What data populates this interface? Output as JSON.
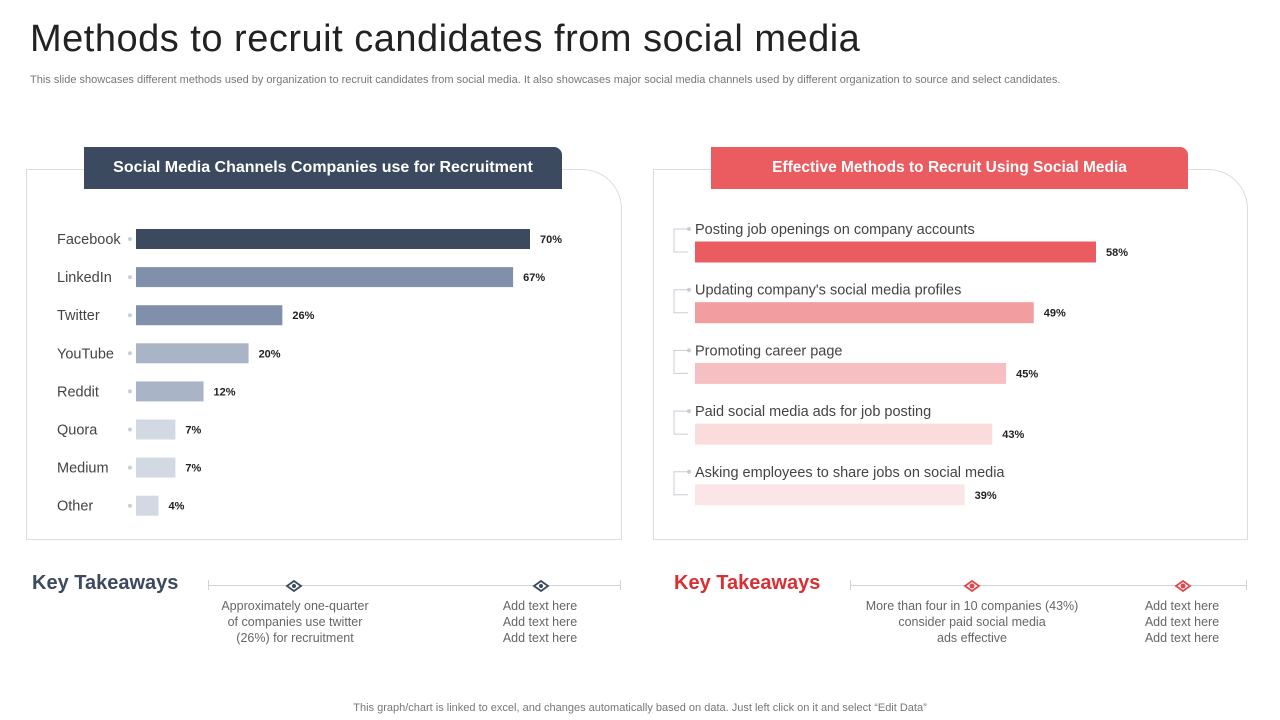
{
  "header": {
    "title": "Methods to recruit candidates from social media",
    "subtitle": "This slide showcases different methods used by organization to recruit candidates from social media. It also showcases major social media channels used by different organization to source and select candidates."
  },
  "left_panel": {
    "banner": "Social Media Channels Companies use for Recruitment"
  },
  "right_panel": {
    "banner": "Effective Methods to Recruit Using Social Media"
  },
  "chart_data": [
    {
      "type": "bar",
      "orientation": "horizontal",
      "title": "Social Media Channels Companies use for Recruitment",
      "categories": [
        "Facebook",
        "LinkedIn",
        "Twitter",
        "YouTube",
        "Reddit",
        "Quora",
        "Medium",
        "Other"
      ],
      "values": [
        70,
        67,
        26,
        20,
        12,
        7,
        7,
        4
      ],
      "value_labels": [
        "70%",
        "67%",
        "26%",
        "20%",
        "12%",
        "7%",
        "7%",
        "4%"
      ],
      "colors": [
        "#3c4a5f",
        "#8190aa",
        "#8190aa",
        "#a9b4c6",
        "#a9b4c6",
        "#d3d9e3",
        "#d3d9e3",
        "#d3d9e3"
      ],
      "xlim": [
        0,
        100
      ],
      "unit": "%"
    },
    {
      "type": "bar",
      "orientation": "horizontal",
      "title": "Effective Methods to Recruit Using Social Media",
      "categories": [
        "Posting job openings on company accounts",
        "Updating company's social media profiles",
        "Promoting career page",
        "Paid social media ads for job posting",
        "Asking employees to share jobs on social media"
      ],
      "values": [
        58,
        49,
        45,
        43,
        39
      ],
      "value_labels": [
        "58%",
        "49%",
        "45%",
        "43%",
        "39%"
      ],
      "colors": [
        "#ea5c60",
        "#f29da0",
        "#f6c0c2",
        "#fadcdd",
        "#fbe5e6"
      ],
      "xlim": [
        0,
        100
      ],
      "unit": "%"
    }
  ],
  "key_takeaways": {
    "left": {
      "title": "Key Takeaways",
      "items": [
        [
          "Approximately one-quarter",
          "of companies use twitter",
          "(26%) for recruitment"
        ],
        [
          "Add text here",
          "Add text here",
          "Add text here"
        ]
      ],
      "accent": "#3c4a5f"
    },
    "right": {
      "title": "Key Takeaways",
      "items": [
        [
          "More than four in 10 companies (43%)",
          "consider paid social media",
          "ads effective"
        ],
        [
          "Add text here",
          "Add text here",
          "Add text here"
        ]
      ],
      "accent": "#d92f33"
    }
  },
  "footer": "This graph/chart is linked to excel,  and changes automatically based on data. Just left click on it and select “Edit Data”"
}
